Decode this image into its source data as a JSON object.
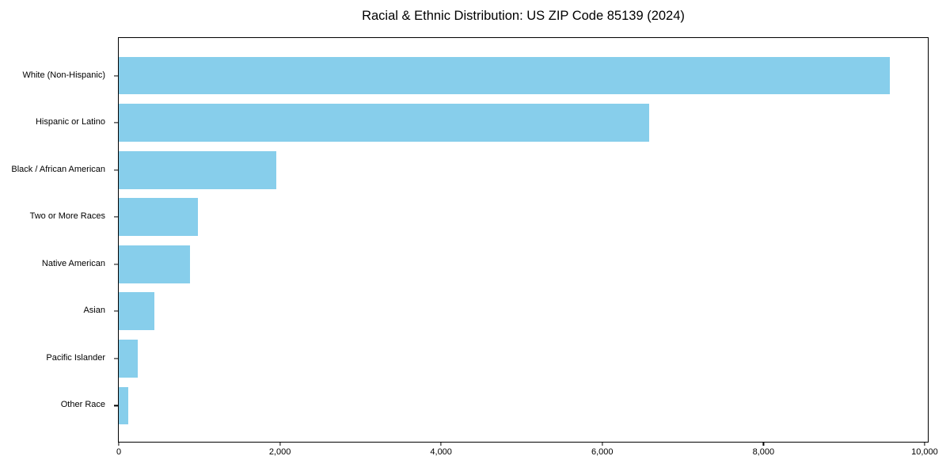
{
  "figure": {
    "title": "Racial & Ethnic Distribution: US ZIP Code 85139 (2024)"
  },
  "chart_data": {
    "type": "bar",
    "orientation": "horizontal",
    "title": "Racial & Ethnic Distribution: US ZIP Code 85139 (2024)",
    "categories": [
      "White (Non-Hispanic)",
      "Hispanic or Latino",
      "Black / African American",
      "Two or More Races",
      "Native American",
      "Asian",
      "Pacific Islander",
      "Other Race"
    ],
    "values": [
      9570,
      6585,
      1955,
      980,
      885,
      440,
      235,
      120
    ],
    "xlabel": "",
    "ylabel": "",
    "x_ticks": [
      {
        "value": 0,
        "label": "0"
      },
      {
        "value": 2000,
        "label": "2,000"
      },
      {
        "value": 4000,
        "label": "4,000"
      },
      {
        "value": 6000,
        "label": "6,000"
      },
      {
        "value": 8000,
        "label": "8,000"
      },
      {
        "value": 10000,
        "label": "10,000"
      }
    ],
    "xlim": [
      0,
      10040
    ],
    "grid": false,
    "legend": false,
    "bar_color": "#87CEEB",
    "axis_color": "#000000",
    "text_color": "#000000",
    "background": "#ffffff"
  }
}
